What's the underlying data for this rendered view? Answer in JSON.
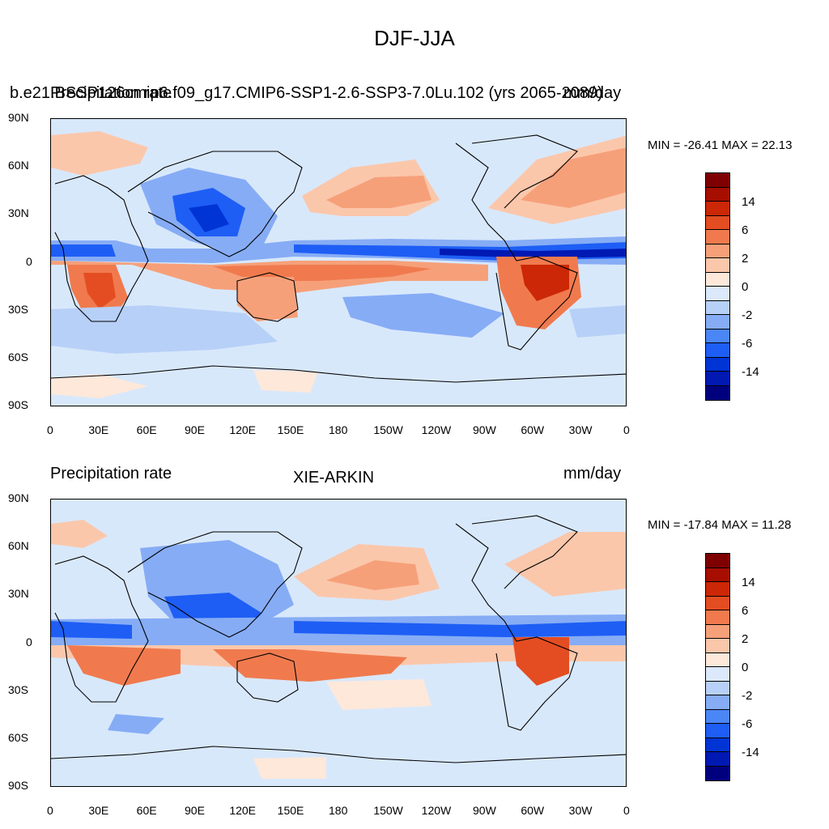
{
  "figure": {
    "title": "DJF-JJA",
    "palette": [
      "#00007f",
      "#0019b3",
      "#0034d5",
      "#1e5ef5",
      "#4b86f7",
      "#86acf5",
      "#b7d0f7",
      "#dbe9fb",
      "#fde8da",
      "#fbc7ab",
      "#f6a07a",
      "#f07a4e",
      "#e44d22",
      "#cc2706",
      "#a60e00",
      "#7f0000"
    ],
    "colorbar_ticks": [
      "14",
      "6",
      "2",
      "0",
      "-2",
      "-6",
      "-14"
    ],
    "lat_labels": [
      "90N",
      "60N",
      "30N",
      "0",
      "30S",
      "60S",
      "90S"
    ],
    "lon_labels": [
      "0",
      "30E",
      "60E",
      "90E",
      "120E",
      "150E",
      "180",
      "150W",
      "120W",
      "90W",
      "60W",
      "30W",
      "0"
    ]
  },
  "panels": [
    {
      "left_label": "b.e21.BSSP126cmip6.f09_g17.CMIP6-SSP1-2.6-SSP3-7.0Lu.102 (yrs 2065-2089)",
      "left_label_overlap": "Precipitation rate",
      "right_label": "mm/day",
      "center_label": "",
      "minmax": "MIN = -26.41 MAX =  22.13",
      "variant": "model"
    },
    {
      "left_label": "Precipitation rate",
      "left_label_overlap": "",
      "right_label": "mm/day",
      "center_label": "XIE-ARKIN",
      "minmax": "MIN = -17.84 MAX =  11.28",
      "variant": "obs"
    }
  ]
}
